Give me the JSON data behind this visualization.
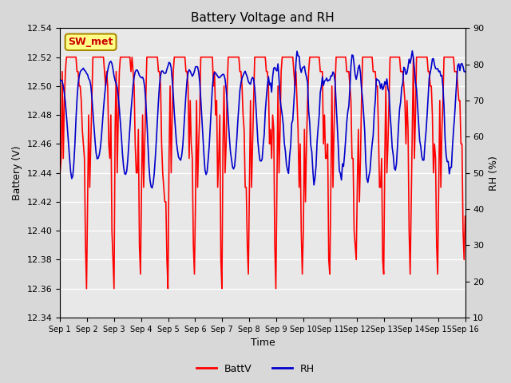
{
  "title": "Battery Voltage and RH",
  "xlabel": "Time",
  "ylabel_left": "Battery (V)",
  "ylabel_right": "RH (%)",
  "station_label": "SW_met",
  "legend_entries": [
    "BattV",
    "RH"
  ],
  "legend_colors": [
    "#ff0000",
    "#0000cc"
  ],
  "ylim_left": [
    12.34,
    12.54
  ],
  "ylim_right": [
    10,
    90
  ],
  "yticks_left": [
    12.34,
    12.36,
    12.38,
    12.4,
    12.42,
    12.44,
    12.46,
    12.48,
    12.5,
    12.52,
    12.54
  ],
  "yticks_right": [
    10,
    20,
    30,
    40,
    50,
    60,
    70,
    80,
    90
  ],
  "outer_bg_color": "#d8d8d8",
  "plot_bg_color": "#e8e8e8",
  "grid_color": "#ffffff",
  "line_color_batt": "#ff0000",
  "line_color_rh": "#0000cc",
  "line_width": 1.2,
  "xtick_labels": [
    "Sep 1",
    "Sep 2",
    "Sep 3",
    "Sep 4",
    "Sep 5",
    "Sep 6",
    "Sep 7",
    "Sep 8",
    "Sep 9",
    "Sep 10",
    "Sep 11",
    "Sep 12",
    "Sep 13",
    "Sep 14",
    "Sep 15",
    "Sep 16"
  ],
  "n_days": 16,
  "figsize": [
    6.4,
    4.8
  ],
  "dpi": 100
}
